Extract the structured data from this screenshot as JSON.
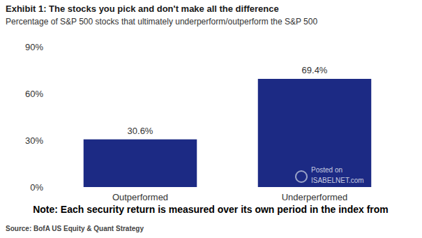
{
  "chart_data": {
    "type": "bar",
    "title": "Exhibit 1: The stocks you pick and don't make all the difference",
    "subtitle": "Percentage of S&P 500 stocks that ultimately underperform/outperform the S&P 500",
    "categories": [
      "Outperformed",
      "Underperformed"
    ],
    "values": [
      30.6,
      69.4
    ],
    "value_labels": [
      "30.6%",
      "69.4%"
    ],
    "color": "#1c2a84",
    "ylim": [
      0,
      90
    ],
    "yticks": [
      {
        "value": 0,
        "label": "0%"
      },
      {
        "value": 30,
        "label": "30%"
      },
      {
        "value": 60,
        "label": "60%"
      },
      {
        "value": 90,
        "label": "90%"
      }
    ],
    "grid": false,
    "data_labels": true,
    "note": "Note: Each security return is measured over its own period in the index from",
    "source": "Source: BofA US Equity & Quant Strategy",
    "watermark": [
      "Posted on",
      "ISABELNET.com"
    ]
  }
}
